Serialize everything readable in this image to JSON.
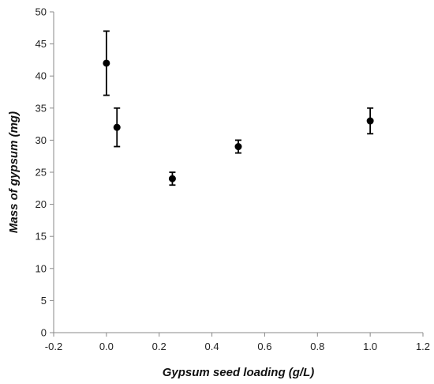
{
  "chart_data": {
    "type": "scatter",
    "xlabel": "Gypsum seed loading (g/L)",
    "ylabel": "Mass of gypsum (mg)",
    "xlim": [
      -0.2,
      1.2
    ],
    "ylim": [
      0,
      50
    ],
    "xticks": [
      -0.2,
      0.0,
      0.2,
      0.4,
      0.6,
      0.8,
      1.0,
      1.2
    ],
    "yticks": [
      0,
      5,
      10,
      15,
      20,
      25,
      30,
      35,
      40,
      45,
      50
    ],
    "xtick_labels": [
      "-0.2",
      "0.0",
      "0.2",
      "0.4",
      "0.6",
      "0.8",
      "1.0",
      "1.2"
    ],
    "ytick_labels": [
      "0",
      "5",
      "10",
      "15",
      "20",
      "25",
      "30",
      "35",
      "40",
      "45",
      "50"
    ],
    "grid": false,
    "series": [
      {
        "x": [
          0.0,
          0.04,
          0.25,
          0.5,
          1.0
        ],
        "y": [
          42,
          32,
          24,
          29,
          33
        ],
        "y_err_low": [
          37,
          29,
          23,
          28,
          31
        ],
        "y_err_high": [
          47,
          35,
          25,
          30,
          35
        ],
        "marker": "circle",
        "color": "#000000"
      }
    ]
  }
}
